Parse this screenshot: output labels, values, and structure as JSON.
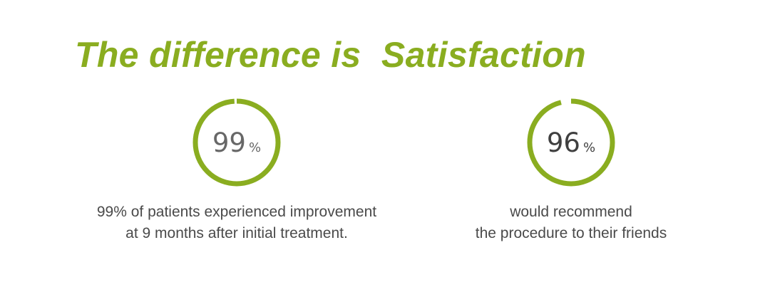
{
  "title": "The difference is  Satisfaction",
  "colors": {
    "accent": "#8aad20",
    "text": "#4a4a4a"
  },
  "stats": [
    {
      "value": "99",
      "unit": "%",
      "percent": 99,
      "caption_line1": "99% of patients experienced improvement",
      "caption_line2": "at 9 months after initial treatment."
    },
    {
      "value": "96",
      "unit": "%",
      "percent": 96,
      "caption_line1": "would recommend",
      "caption_line2": "the procedure to their friends"
    }
  ]
}
